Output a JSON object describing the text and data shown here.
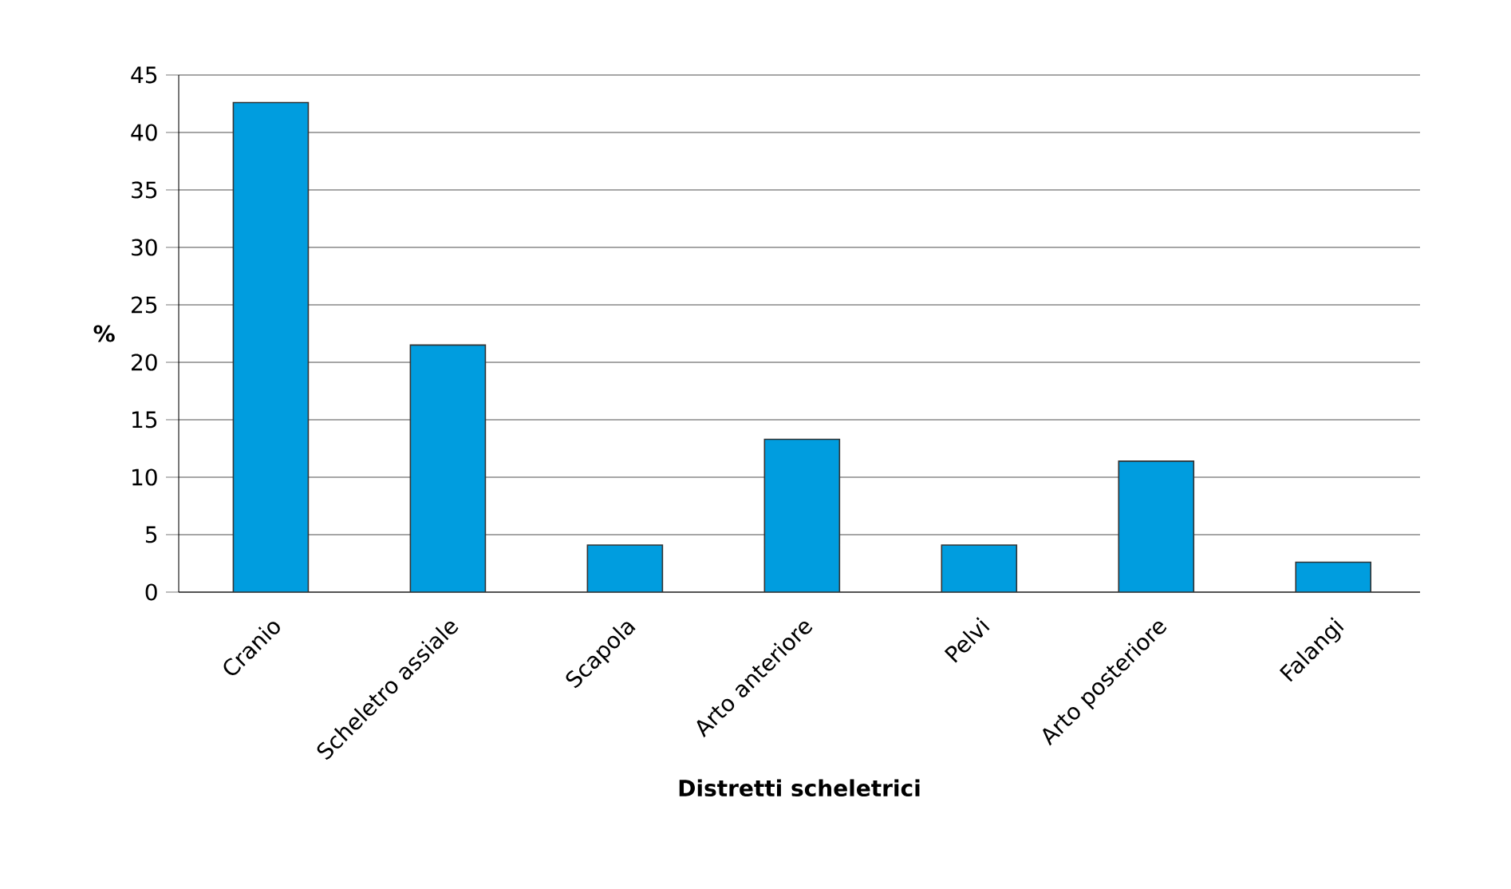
{
  "chart_data": {
    "type": "bar",
    "xlabel": "Distretti scheletrici",
    "ylabel": "%",
    "categories": [
      "Cranio",
      "Scheletro assiale",
      "Scapola",
      "Arto anteriore",
      "Pelvi",
      "Arto posteriore",
      "Falangi"
    ],
    "values": [
      42.6,
      21.5,
      4.1,
      13.3,
      4.1,
      11.4,
      2.6
    ],
    "color": "#009ddf",
    "ylim": [
      0,
      45
    ],
    "yticks": [
      0,
      5,
      10,
      15,
      20,
      25,
      30,
      35,
      40,
      45
    ],
    "grid": "y"
  }
}
